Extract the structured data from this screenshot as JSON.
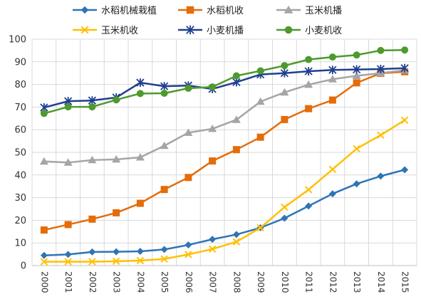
{
  "chart_data": {
    "type": "line",
    "title": "",
    "xlabel": "",
    "ylabel": "",
    "ylim": [
      0,
      100
    ],
    "yticks": [
      0,
      10,
      20,
      30,
      40,
      50,
      60,
      70,
      80,
      90,
      100
    ],
    "grid": true,
    "legend_position": "top",
    "categories": [
      "2000",
      "2001",
      "2002",
      "2003",
      "2004",
      "2005",
      "2006",
      "2007",
      "2008",
      "2009",
      "2010",
      "2011",
      "2012",
      "2013",
      "2014",
      "2015"
    ],
    "series": [
      {
        "name": "水稻机械栽植",
        "color": "#2e75b6",
        "marker": "diamond",
        "values": [
          4.5,
          4.9,
          6.0,
          6.1,
          6.3,
          7.1,
          9.1,
          11.6,
          13.7,
          16.7,
          20.9,
          26.3,
          31.7,
          36.1,
          39.5,
          42.3
        ]
      },
      {
        "name": "水稻机收",
        "color": "#e46c0a",
        "marker": "square",
        "values": [
          15.7,
          18.1,
          20.5,
          23.3,
          27.5,
          33.6,
          38.9,
          46.2,
          51.2,
          56.7,
          64.5,
          69.3,
          73.1,
          80.7,
          84.9,
          85.6
        ]
      },
      {
        "name": "玉米机播",
        "color": "#a5a5a5",
        "marker": "triangle",
        "values": [
          46.0,
          45.5,
          46.6,
          46.9,
          47.8,
          52.9,
          58.7,
          60.4,
          64.4,
          72.4,
          76.5,
          79.9,
          82.3,
          83.8,
          85.0,
          86.3
        ]
      },
      {
        "name": "玉米机收",
        "color": "#ffc000",
        "marker": "x",
        "values": [
          1.7,
          1.7,
          1.7,
          1.9,
          2.2,
          2.9,
          4.9,
          7.3,
          10.5,
          16.7,
          25.8,
          33.5,
          42.5,
          51.6,
          57.6,
          64.2
        ]
      },
      {
        "name": "小麦机播",
        "color": "#1f3f8f",
        "marker": "star",
        "values": [
          69.8,
          72.6,
          72.9,
          74.2,
          80.8,
          79.2,
          79.5,
          78.0,
          81.0,
          84.4,
          85.0,
          85.8,
          86.4,
          86.6,
          86.8,
          87.2
        ]
      },
      {
        "name": "小麦机收",
        "color": "#4e9a2c",
        "marker": "circle",
        "values": [
          67.2,
          70.1,
          70.1,
          73.2,
          76.0,
          76.1,
          78.3,
          78.9,
          83.8,
          86.0,
          88.3,
          91.0,
          92.1,
          93.0,
          95.0,
          95.2
        ]
      }
    ]
  }
}
